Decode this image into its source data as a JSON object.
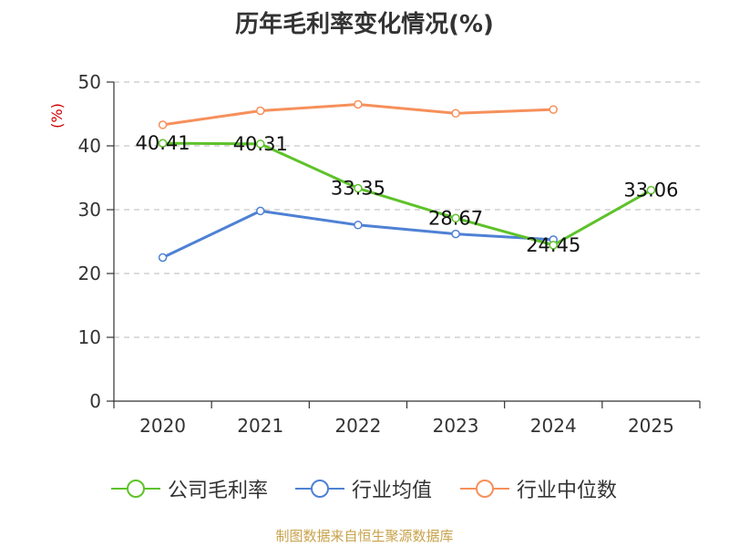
{
  "title": "历年毛利率变化情况(%)",
  "source": "制图数据来自恒生聚源数据库",
  "colors": {
    "company": "#5ec22a",
    "industry_avg": "#4f81d4",
    "industry_median": "#f6905b",
    "ylabel": "#cc0000",
    "source": "#c8a24a"
  },
  "chart_data": {
    "type": "line",
    "title": "历年毛利率变化情况(%)",
    "ylabel": "(%)",
    "xlabel": "",
    "categories": [
      "2020",
      "2021",
      "2022",
      "2023",
      "2024",
      "2025"
    ],
    "ylim": [
      0,
      50
    ],
    "yticks": [
      0,
      10,
      20,
      30,
      40,
      50
    ],
    "grid": true,
    "legend_position": "bottom",
    "series": [
      {
        "name": "公司毛利率",
        "key": "company",
        "values": [
          40.41,
          40.31,
          33.35,
          28.67,
          24.45,
          33.06
        ],
        "labels": [
          "40.41",
          "40.31",
          "33.35",
          "28.67",
          "24.45",
          "33.06"
        ]
      },
      {
        "name": "行业均值",
        "key": "industry_avg",
        "values": [
          22.5,
          29.8,
          27.6,
          26.2,
          25.3,
          null
        ]
      },
      {
        "name": "行业中位数",
        "key": "industry_median",
        "values": [
          43.3,
          45.5,
          46.5,
          45.1,
          45.7,
          null
        ]
      }
    ]
  }
}
